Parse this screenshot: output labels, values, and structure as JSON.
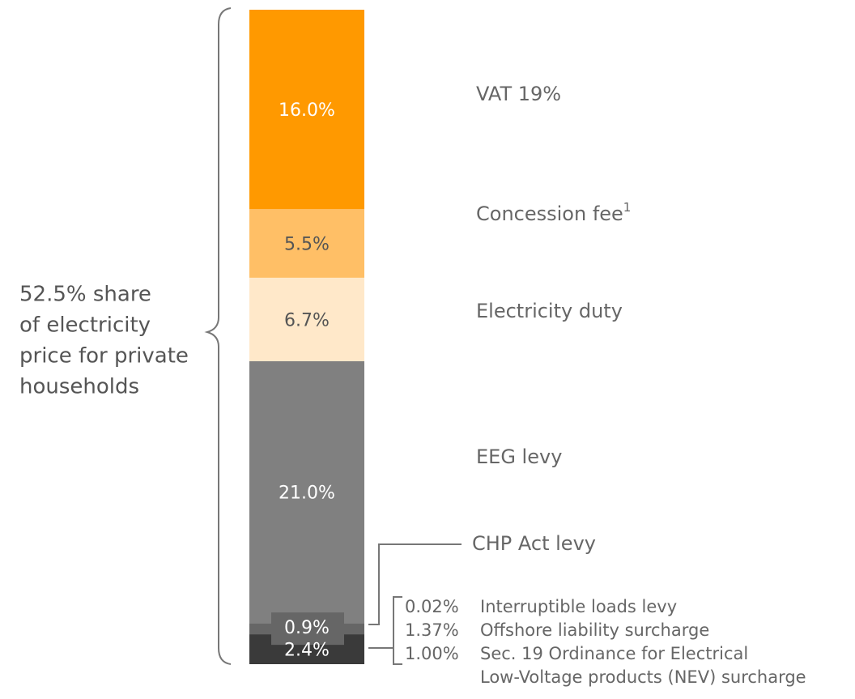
{
  "chart_data": {
    "type": "stacked_bar",
    "series": [
      {
        "name": "VAT 19%",
        "color": "#ff9900",
        "values": [
          16.0
        ],
        "value_labels": [
          "16.0%"
        ]
      },
      {
        "name": "Concession fee",
        "footnote_mark": "1",
        "color": "#ffbf66",
        "values": [
          5.5
        ],
        "value_labels": [
          "5.5%"
        ]
      },
      {
        "name": "Electricity duty",
        "color": "#ffe8c9",
        "values": [
          6.7
        ],
        "value_labels": [
          "6.7%"
        ]
      },
      {
        "name": "EEG levy",
        "color": "#808080",
        "values": [
          21.0
        ],
        "value_labels": [
          "21.0%"
        ]
      },
      {
        "name": "CHP Act levy",
        "color": "#666666",
        "values": [
          0.9
        ],
        "value_labels": [
          "0.9%"
        ]
      },
      {
        "color": "#3a3a3a",
        "values": [
          2.4
        ],
        "value_labels": [
          "2.4%"
        ],
        "breakdown": [
          {
            "share": "0.02%",
            "lines": [
              "Interruptible loads levy"
            ]
          },
          {
            "share": "1.37%",
            "lines": [
              "Offshore liability surcharge"
            ]
          },
          {
            "share": "1.00%",
            "lines": [
              "Sec. 19 Ordinance for Electrical",
              "Low-Voltage products (NEV) surcharge"
            ]
          }
        ]
      }
    ],
    "annotation_lines": [
      "52.5% share",
      "of electricity",
      "price for private",
      "households"
    ]
  }
}
